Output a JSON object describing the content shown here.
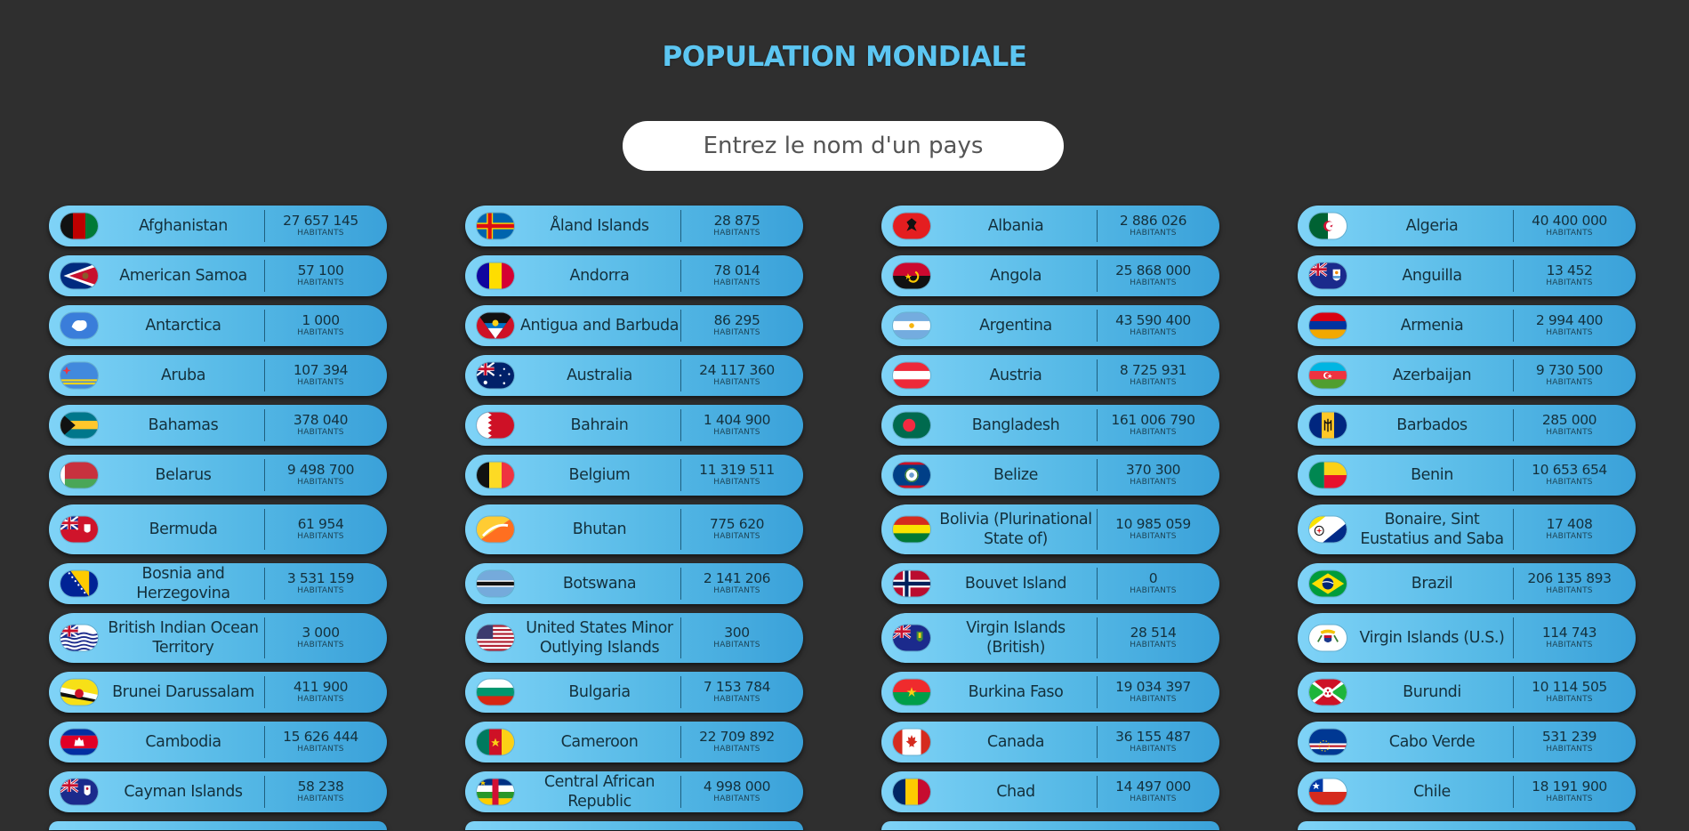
{
  "page": {
    "title": "POPULATION MONDIALE",
    "search_placeholder": "Entrez le nom d'un pays",
    "unit_label": "HABITANTS"
  },
  "colors": {
    "background": "#2f2f2f",
    "title": "#5cc6f2",
    "card_gradient_start": "#7fd3f7",
    "card_gradient_end": "#3aa1d9",
    "text": "#14303c"
  },
  "columns": [
    [
      {
        "name": "Afghanistan",
        "population": "27 657 145",
        "flag": "af"
      },
      {
        "name": "American Samoa",
        "population": "57 100",
        "flag": "as"
      },
      {
        "name": "Antarctica",
        "population": "1 000",
        "flag": "aq"
      },
      {
        "name": "Aruba",
        "population": "107 394",
        "flag": "aw"
      },
      {
        "name": "Bahamas",
        "population": "378 040",
        "flag": "bs"
      },
      {
        "name": "Belarus",
        "population": "9 498 700",
        "flag": "by"
      },
      {
        "name": "Bermuda",
        "population": "61 954",
        "flag": "bm",
        "tall": true
      },
      {
        "name": "Bosnia and Herzegovina",
        "population": "3 531 159",
        "flag": "ba"
      },
      {
        "name": "British Indian Ocean Territory",
        "population": "3 000",
        "flag": "io",
        "tall": true
      },
      {
        "name": "Brunei Darussalam",
        "population": "411 900",
        "flag": "bn"
      },
      {
        "name": "Cambodia",
        "population": "15 626 444",
        "flag": "kh"
      },
      {
        "name": "Cayman Islands",
        "population": "58 238",
        "flag": "ky"
      }
    ],
    [
      {
        "name": "Åland Islands",
        "population": "28 875",
        "flag": "ax"
      },
      {
        "name": "Andorra",
        "population": "78 014",
        "flag": "ad"
      },
      {
        "name": "Antigua and Barbuda",
        "population": "86 295",
        "flag": "ag"
      },
      {
        "name": "Australia",
        "population": "24 117 360",
        "flag": "au"
      },
      {
        "name": "Bahrain",
        "population": "1 404 900",
        "flag": "bh"
      },
      {
        "name": "Belgium",
        "population": "11 319 511",
        "flag": "be"
      },
      {
        "name": "Bhutan",
        "population": "775 620",
        "flag": "bt",
        "tall": true
      },
      {
        "name": "Botswana",
        "population": "2 141 206",
        "flag": "bw"
      },
      {
        "name": "United States Minor Outlying Islands",
        "population": "300",
        "flag": "um",
        "tall": true
      },
      {
        "name": "Bulgaria",
        "population": "7 153 784",
        "flag": "bg"
      },
      {
        "name": "Cameroon",
        "population": "22 709 892",
        "flag": "cm"
      },
      {
        "name": "Central African Republic",
        "population": "4 998 000",
        "flag": "cf"
      }
    ],
    [
      {
        "name": "Albania",
        "population": "2 886 026",
        "flag": "al"
      },
      {
        "name": "Angola",
        "population": "25 868 000",
        "flag": "ao"
      },
      {
        "name": "Argentina",
        "population": "43 590 400",
        "flag": "ar"
      },
      {
        "name": "Austria",
        "population": "8 725 931",
        "flag": "at"
      },
      {
        "name": "Bangladesh",
        "population": "161 006 790",
        "flag": "bd"
      },
      {
        "name": "Belize",
        "population": "370 300",
        "flag": "bz"
      },
      {
        "name": "Bolivia (Plurinational State of)",
        "population": "10 985 059",
        "flag": "bo",
        "tall": true
      },
      {
        "name": "Bouvet Island",
        "population": "0",
        "flag": "bv"
      },
      {
        "name": "Virgin Islands (British)",
        "population": "28 514",
        "flag": "vg",
        "tall": true
      },
      {
        "name": "Burkina Faso",
        "population": "19 034 397",
        "flag": "bf"
      },
      {
        "name": "Canada",
        "population": "36 155 487",
        "flag": "ca"
      },
      {
        "name": "Chad",
        "population": "14 497 000",
        "flag": "td"
      }
    ],
    [
      {
        "name": "Algeria",
        "population": "40 400 000",
        "flag": "dz"
      },
      {
        "name": "Anguilla",
        "population": "13 452",
        "flag": "ai"
      },
      {
        "name": "Armenia",
        "population": "2 994 400",
        "flag": "am"
      },
      {
        "name": "Azerbaijan",
        "population": "9 730 500",
        "flag": "az"
      },
      {
        "name": "Barbados",
        "population": "285 000",
        "flag": "bb"
      },
      {
        "name": "Benin",
        "population": "10 653 654",
        "flag": "bj"
      },
      {
        "name": "Bonaire, Sint Eustatius and Saba",
        "population": "17 408",
        "flag": "bq",
        "tall": true
      },
      {
        "name": "Brazil",
        "population": "206 135 893",
        "flag": "br"
      },
      {
        "name": "Virgin Islands (U.S.)",
        "population": "114 743",
        "flag": "vi",
        "tall": true
      },
      {
        "name": "Burundi",
        "population": "10 114 505",
        "flag": "bi"
      },
      {
        "name": "Cabo Verde",
        "population": "531 239",
        "flag": "cv"
      },
      {
        "name": "Chile",
        "population": "18 191 900",
        "flag": "cl"
      }
    ]
  ]
}
